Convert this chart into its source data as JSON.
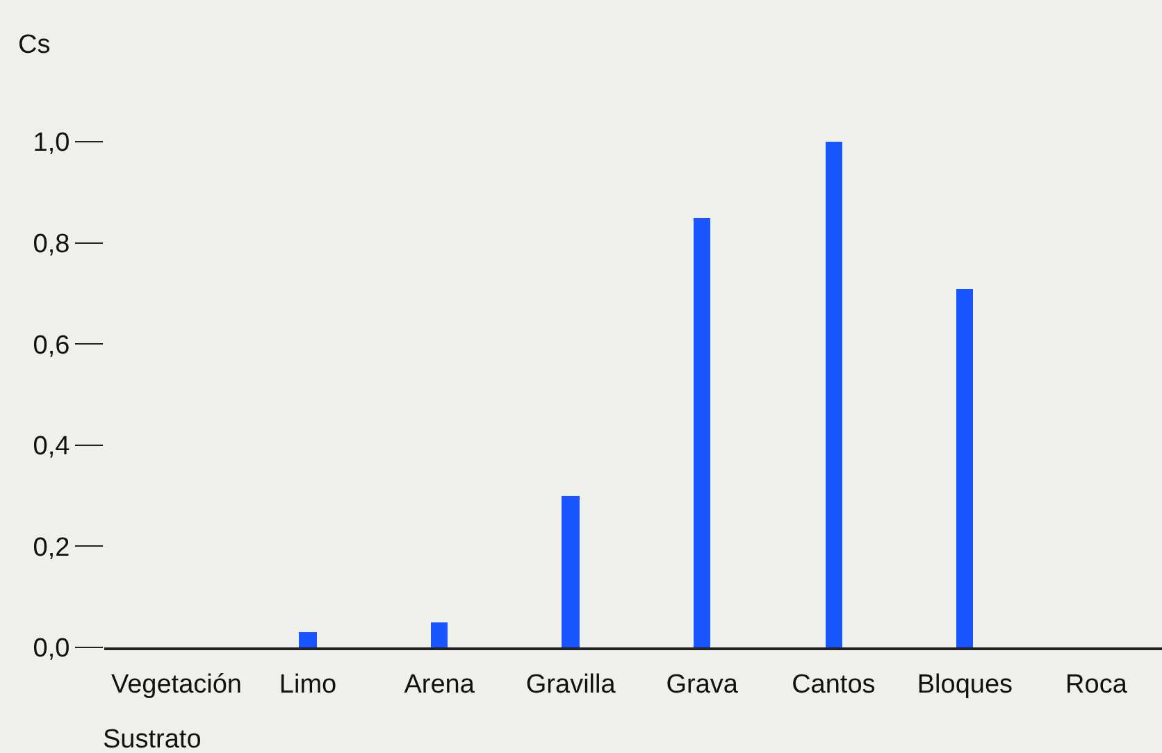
{
  "chart_data": {
    "type": "bar",
    "ylabel": "Cs",
    "xlabel": "Sustrato",
    "categories": [
      "Vegetación",
      "Limo",
      "Arena",
      "Gravilla",
      "Grava",
      "Cantos",
      "Bloques",
      "Roca"
    ],
    "values": [
      0,
      0.03,
      0.05,
      0.3,
      0.85,
      1.0,
      0.71,
      0
    ],
    "color": "#1a56ff",
    "ylim": [
      0,
      1.0
    ],
    "yticks": [
      {
        "value": 0,
        "label": "0,0"
      },
      {
        "value": 0.2,
        "label": "0,2"
      },
      {
        "value": 0.4,
        "label": "0,4"
      },
      {
        "value": 0.6,
        "label": "0,6"
      },
      {
        "value": 0.8,
        "label": "0,8"
      },
      {
        "value": 1.0,
        "label": "1,0"
      }
    ],
    "grid": false
  }
}
